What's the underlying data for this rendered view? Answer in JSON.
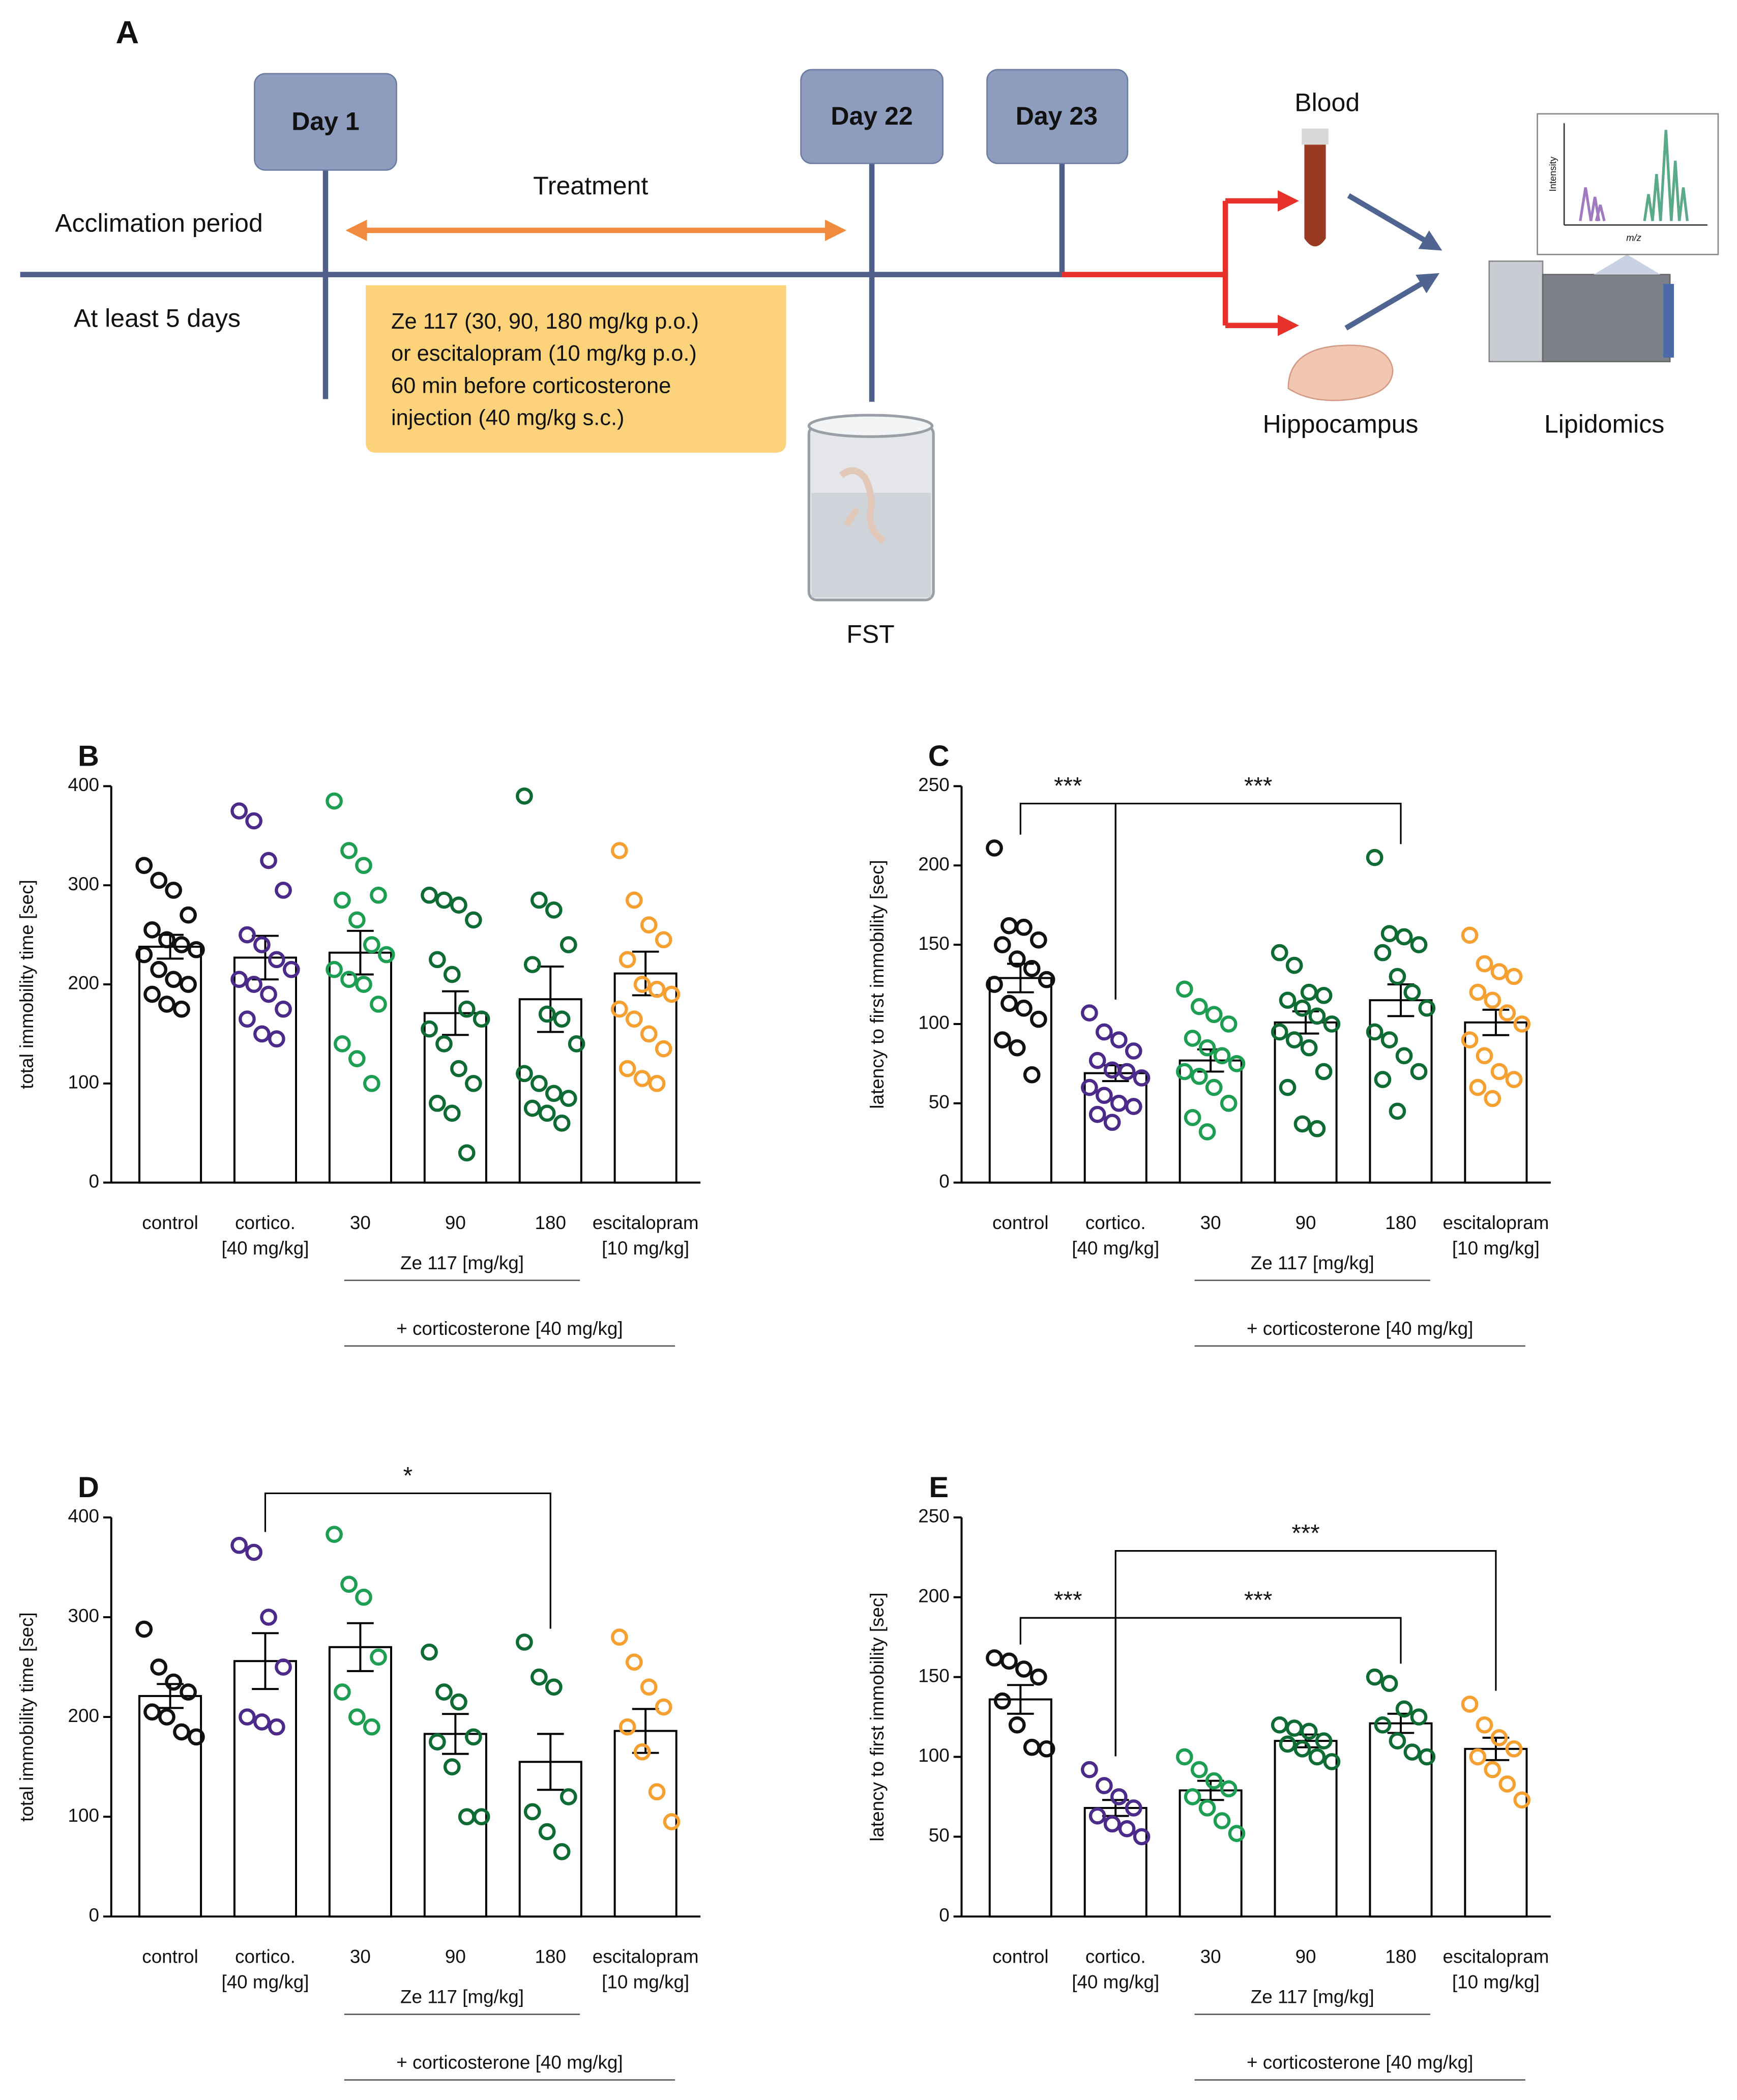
{
  "diagram": {
    "label": "A",
    "days": [
      "Day 1",
      "Day 22",
      "Day 23"
    ],
    "treatment": "Treatment",
    "acclimation": "Acclimation period",
    "duration": "At least 5 days",
    "protocol": [
      "Ze 117 (30, 90, 180 mg/kg p.o.)",
      "or escitalopram (10 mg/kg p.o.)",
      "60 min before corticosterone",
      "injection (40 mg/kg s.c.)"
    ],
    "fst": "FST",
    "blood": "Blood",
    "hippocampus": "Hippocampus",
    "lipidomics": "Lipidomics",
    "ms_x": "m/z",
    "ms_y": "Intensity"
  },
  "chart_data": [
    {
      "type": "bar",
      "panel": "B",
      "y_label": "total immobility time [sec]",
      "categories": [
        "control",
        "cortico.",
        "30",
        "90",
        "180",
        "escitalopram"
      ],
      "category_sublabels": [
        null,
        "[40 mg/kg]",
        null,
        null,
        null,
        "[10 mg/kg]"
      ],
      "colors": [
        "#111111",
        "#4b2a8a",
        "#1e9e52",
        "#0e6b34",
        "#0e6b34",
        "#f5a030"
      ],
      "values": [
        238,
        227,
        232,
        171,
        185,
        211
      ],
      "errors": [
        12,
        22,
        22,
        22,
        33,
        22
      ],
      "points": [
        [
          320,
          305,
          295,
          270,
          255,
          245,
          240,
          235,
          230,
          215,
          205,
          200,
          190,
          180,
          175
        ],
        [
          375,
          365,
          325,
          295,
          250,
          240,
          225,
          215,
          205,
          200,
          190,
          175,
          165,
          150,
          145
        ],
        [
          385,
          335,
          320,
          290,
          285,
          265,
          240,
          230,
          215,
          205,
          200,
          180,
          140,
          125,
          100
        ],
        [
          290,
          285,
          280,
          265,
          225,
          210,
          175,
          165,
          155,
          140,
          115,
          100,
          80,
          70,
          30
        ],
        [
          390,
          285,
          275,
          240,
          220,
          170,
          165,
          140,
          110,
          100,
          90,
          85,
          75,
          70,
          60
        ],
        [
          335,
          285,
          260,
          245,
          225,
          200,
          195,
          190,
          175,
          165,
          150,
          135,
          115,
          105,
          100
        ]
      ],
      "ylim": [
        0,
        400
      ],
      "yticks": [
        0,
        100,
        200,
        300,
        400
      ],
      "groups": [
        {
          "label": "Ze 117 [mg/kg]",
          "categories": [
            2,
            3,
            4
          ]
        },
        {
          "label": "+ corticosterone [40 mg/kg]",
          "categories": [
            2,
            3,
            4,
            5
          ]
        }
      ],
      "annotations": []
    },
    {
      "type": "bar",
      "panel": "C",
      "y_label": "latency to first immobility [sec]",
      "categories": [
        "control",
        "cortico.",
        "30",
        "90",
        "180",
        "escitalopram"
      ],
      "category_sublabels": [
        null,
        "[40 mg/kg]",
        null,
        null,
        null,
        "[10 mg/kg]"
      ],
      "colors": [
        "#111111",
        "#4b2a8a",
        "#1e9e52",
        "#0e6b34",
        "#0e6b34",
        "#f5a030"
      ],
      "values": [
        129,
        69,
        77,
        101,
        115,
        101
      ],
      "errors": [
        9,
        5,
        7,
        7,
        10,
        8
      ],
      "points": [
        [
          211,
          162,
          161,
          153,
          150,
          141,
          135,
          128,
          125,
          113,
          110,
          103,
          90,
          85,
          68
        ],
        [
          107,
          95,
          90,
          83,
          77,
          71,
          70,
          66,
          60,
          55,
          50,
          48,
          43,
          38
        ],
        [
          122,
          111,
          106,
          100,
          91,
          85,
          80,
          75,
          70,
          67,
          60,
          50,
          41,
          32
        ],
        [
          145,
          137,
          120,
          118,
          115,
          110,
          105,
          100,
          95,
          90,
          85,
          70,
          60,
          37,
          34
        ],
        [
          205,
          157,
          155,
          150,
          145,
          130,
          120,
          110,
          95,
          90,
          80,
          70,
          65,
          45
        ],
        [
          156,
          138,
          133,
          130,
          120,
          115,
          107,
          100,
          90,
          80,
          70,
          65,
          60,
          53
        ]
      ],
      "ylim": [
        0,
        250
      ],
      "yticks": [
        0,
        50,
        100,
        150,
        200,
        250
      ],
      "groups": [
        {
          "label": "Ze 117 [mg/kg]",
          "categories": [
            2,
            3,
            4
          ]
        },
        {
          "label": "+ corticosterone [40 mg/kg]",
          "categories": [
            2,
            3,
            4,
            5
          ]
        }
      ],
      "annotations": [
        {
          "text": "***",
          "categories": [
            0,
            1
          ]
        },
        {
          "text": "***",
          "categories": [
            1,
            4
          ]
        }
      ]
    },
    {
      "type": "bar",
      "panel": "D",
      "y_label": "total immobility time [sec]",
      "categories": [
        "control",
        "cortico.",
        "30",
        "90",
        "180",
        "escitalopram"
      ],
      "category_sublabels": [
        null,
        "[40 mg/kg]",
        null,
        null,
        null,
        "[10 mg/kg]"
      ],
      "colors": [
        "#111111",
        "#4b2a8a",
        "#1e9e52",
        "#0e6b34",
        "#0e6b34",
        "#f5a030"
      ],
      "values": [
        221,
        256,
        270,
        183,
        155,
        186
      ],
      "errors": [
        12,
        28,
        24,
        20,
        28,
        22
      ],
      "points": [
        [
          288,
          250,
          235,
          225,
          205,
          200,
          185,
          180
        ],
        [
          372,
          365,
          300,
          250,
          200,
          195,
          190
        ],
        [
          383,
          333,
          320,
          260,
          225,
          200,
          190
        ],
        [
          265,
          225,
          215,
          180,
          175,
          150,
          100,
          100
        ],
        [
          275,
          240,
          230,
          120,
          105,
          85,
          65
        ],
        [
          280,
          255,
          230,
          210,
          190,
          165,
          125,
          95
        ]
      ],
      "ylim": [
        0,
        400
      ],
      "yticks": [
        0,
        100,
        200,
        300,
        400
      ],
      "groups": [
        {
          "label": "Ze 117 [mg/kg]",
          "categories": [
            2,
            3,
            4
          ]
        },
        {
          "label": "+ corticosterone [40 mg/kg]",
          "categories": [
            2,
            3,
            4,
            5
          ]
        }
      ],
      "annotations": [
        {
          "text": "*",
          "categories": [
            1,
            4
          ]
        }
      ]
    },
    {
      "type": "bar",
      "panel": "E",
      "y_label": "latency to first immobility [sec]",
      "categories": [
        "control",
        "cortico.",
        "30",
        "90",
        "180",
        "escitalopram"
      ],
      "category_sublabels": [
        null,
        "[40 mg/kg]",
        null,
        null,
        null,
        "[10 mg/kg]"
      ],
      "colors": [
        "#111111",
        "#4b2a8a",
        "#1e9e52",
        "#0e6b34",
        "#0e6b34",
        "#f5a030"
      ],
      "values": [
        136,
        68,
        79,
        110,
        121,
        105
      ],
      "errors": [
        9,
        5,
        6,
        4,
        6,
        7
      ],
      "points": [
        [
          162,
          160,
          155,
          150,
          135,
          120,
          106,
          105
        ],
        [
          92,
          82,
          75,
          68,
          63,
          58,
          55,
          50
        ],
        [
          100,
          92,
          85,
          80,
          75,
          68,
          60,
          52
        ],
        [
          120,
          118,
          116,
          110,
          108,
          105,
          100,
          97
        ],
        [
          150,
          146,
          130,
          125,
          120,
          110,
          103,
          100
        ],
        [
          133,
          120,
          112,
          105,
          100,
          92,
          83,
          73
        ]
      ],
      "ylim": [
        0,
        250
      ],
      "yticks": [
        0,
        50,
        100,
        150,
        200,
        250
      ],
      "groups": [
        {
          "label": "Ze 117 [mg/kg]",
          "categories": [
            2,
            3,
            4
          ]
        },
        {
          "label": "+ corticosterone [40 mg/kg]",
          "categories": [
            2,
            3,
            4,
            5
          ]
        }
      ],
      "annotations": [
        {
          "text": "***",
          "categories": [
            0,
            1
          ]
        },
        {
          "text": "***",
          "categories": [
            1,
            4
          ]
        },
        {
          "text": "***",
          "categories": [
            1,
            5
          ]
        }
      ]
    }
  ]
}
